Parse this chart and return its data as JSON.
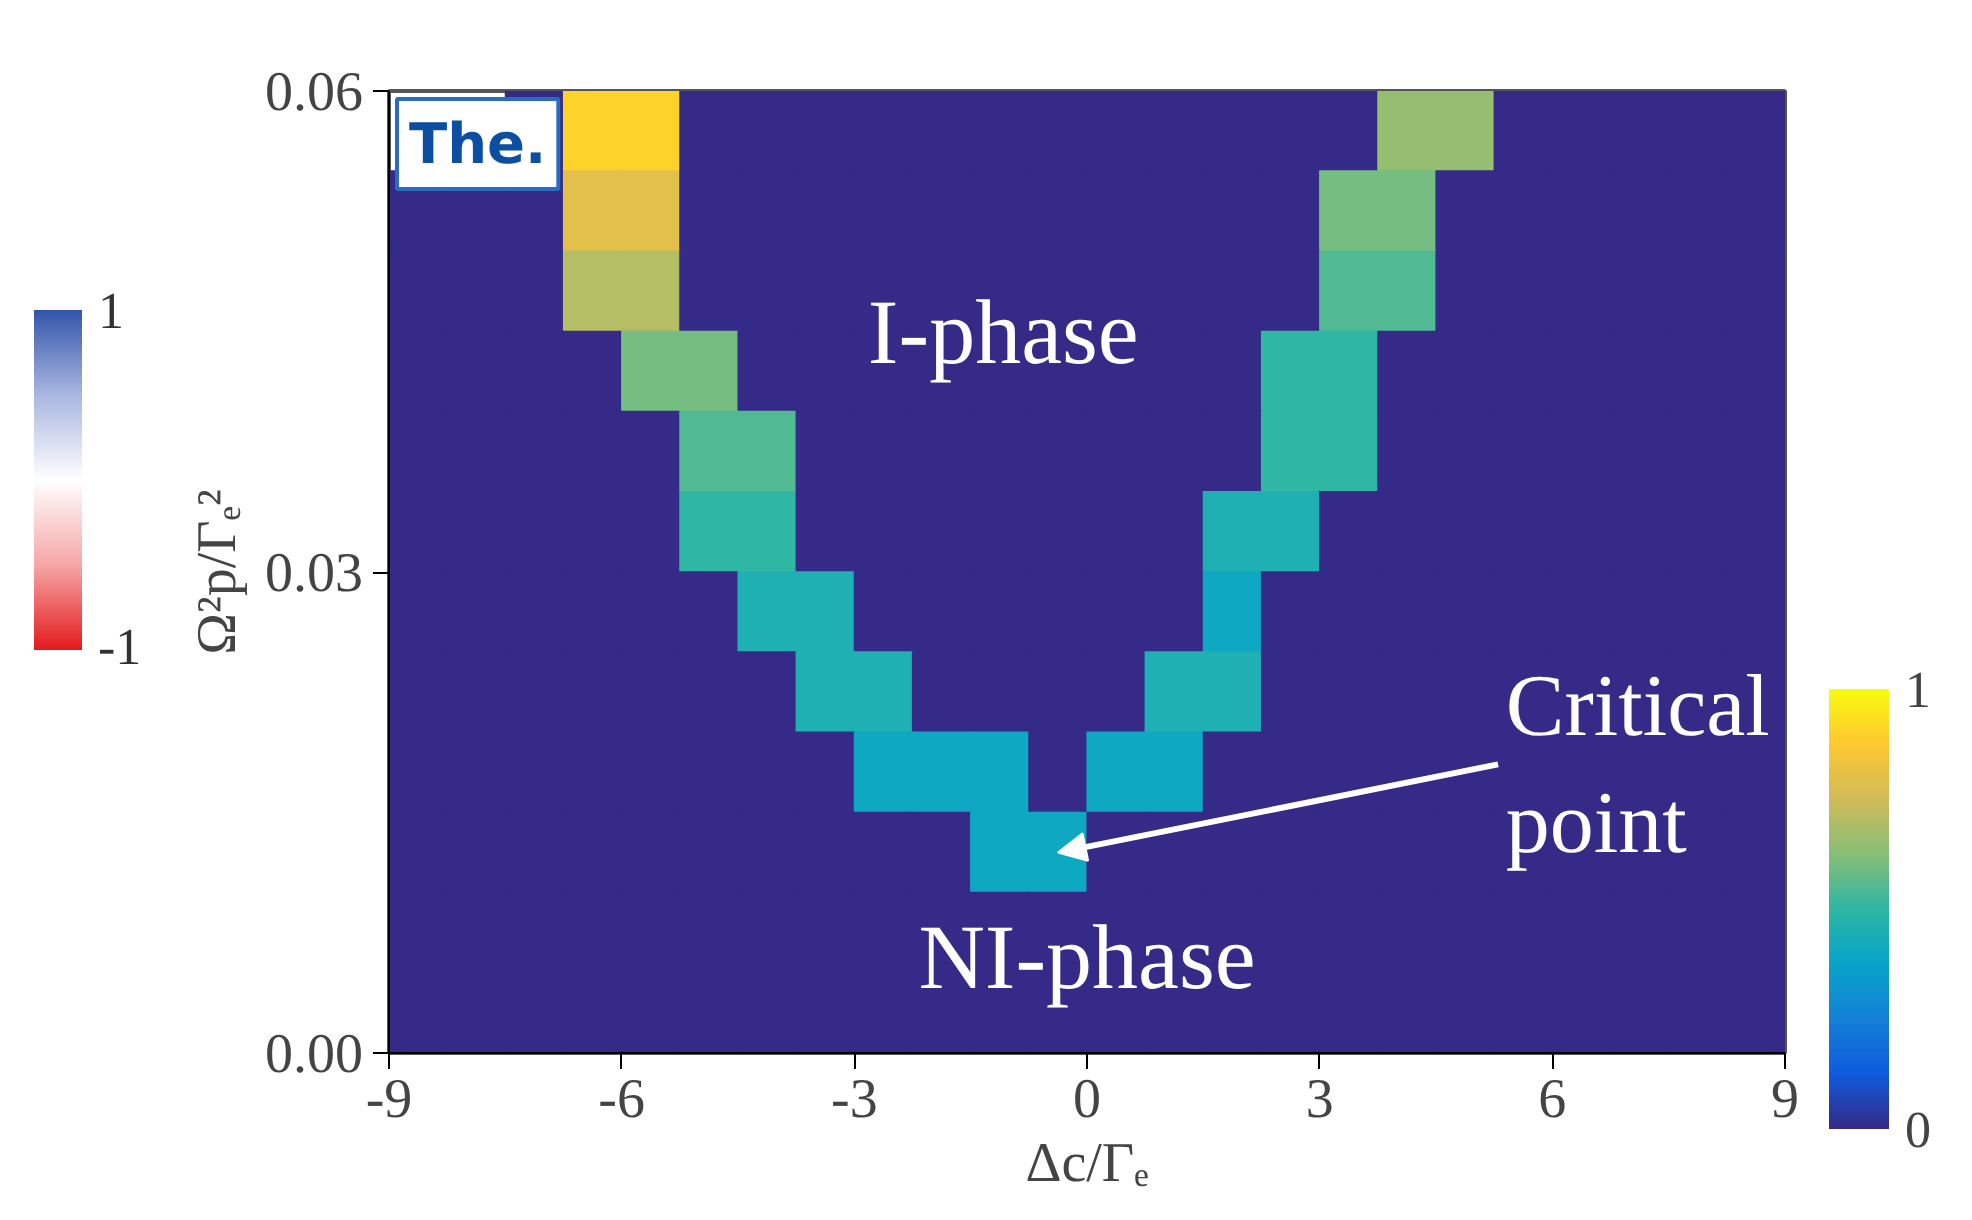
{
  "chart_data": [
    {
      "type": "other",
      "annotations": [
        "1",
        "-1"
      ]
    },
    {
      "type": "scatter",
      "xlabel": "Δc/Γₑ",
      "ylabel": "Ω²p/Γₑ²",
      "marker": "square",
      "xlim": [
        -9,
        9
      ],
      "ylim": [
        0,
        0.06
      ],
      "xticks": [
        {
          "value": -9,
          "label": "-9"
        },
        {
          "value": -6,
          "label": "-6"
        },
        {
          "value": -3,
          "label": "-3"
        },
        0,
        3,
        6,
        9
      ],
      "yticks": [
        {
          "value": 0,
          "label": "0.00"
        },
        {
          "value": 0.03,
          "label": "0.03"
        },
        {
          "value": 0.06,
          "label": "0.06"
        }
      ],
      "clim": [
        0,
        1
      ],
      "cticks": [
        0,
        1
      ],
      "x": [
        -7.125,
        -6.375,
        -5.625,
        -4.875,
        -4.125,
        -3.375,
        -2.625,
        -1.875,
        -1.125,
        -0.375,
        0.375,
        1.125,
        1.875,
        2.625,
        3.375,
        4.125,
        4.875,
        5.625,
        6.375,
        7.125,
        7.875,
        8.625,
        -8.625,
        -7.875,
        -7.125,
        -6.375,
        -5.625,
        -4.875,
        -4.125,
        -3.375,
        -2.625,
        -1.875,
        -1.125,
        -0.375,
        0.375,
        1.125,
        1.875,
        2.625,
        3.375,
        4.125,
        4.875,
        5.625,
        6.375,
        7.125,
        7.875,
        8.625,
        -8.625,
        -7.875,
        -7.125,
        -6.375,
        -5.625,
        -4.875,
        -4.125,
        -3.375,
        -2.625,
        -1.875,
        -1.125,
        -0.375,
        0.375,
        1.125,
        1.875,
        2.625,
        3.375,
        4.125,
        4.875,
        5.625,
        6.375,
        7.125,
        7.875,
        8.625,
        -8.625,
        -7.875,
        -7.125,
        -6.375,
        -5.625,
        -4.875,
        -4.125,
        -3.375,
        -2.625,
        -1.875,
        -1.125,
        -0.375,
        0.375,
        1.125,
        1.875,
        2.625,
        3.375,
        4.125,
        4.875,
        5.625,
        6.375,
        7.125,
        7.875,
        8.625,
        -8.625,
        -7.875,
        -7.125,
        -6.375,
        -5.625,
        -4.875,
        -4.125,
        -3.375,
        -2.625,
        -1.875,
        -1.125,
        -0.375,
        0.375,
        1.125,
        1.875,
        2.625,
        3.375,
        4.125,
        4.875,
        5.625,
        6.375,
        7.125,
        7.875,
        8.625,
        -8.625,
        -7.875,
        -7.125,
        -6.375,
        -5.625,
        -4.875,
        -4.125,
        -3.375,
        -2.625,
        -1.875,
        -1.125,
        -0.375,
        0.375,
        1.125,
        1.875,
        2.625,
        3.375,
        4.125,
        4.875,
        5.625,
        6.375,
        7.125,
        7.875,
        8.625,
        -8.625,
        -7.875,
        -7.125,
        -6.375,
        -5.625,
        -4.875,
        -4.125,
        -3.375,
        -2.625,
        -1.875,
        -1.125,
        -0.375,
        0.375,
        1.125,
        1.875,
        2.625,
        3.375,
        4.125,
        4.875,
        5.625,
        6.375,
        7.125,
        7.875,
        8.625,
        -8.625,
        -7.875,
        -7.125,
        -6.375,
        -5.625,
        -4.875,
        -4.125,
        -3.375,
        -2.625,
        -1.875,
        -1.125,
        -0.375,
        0.375,
        1.125,
        1.875,
        2.625,
        3.375,
        4.125,
        4.875,
        5.625,
        6.375,
        7.125,
        7.875,
        8.625,
        -8.625,
        -7.875,
        -7.125,
        -6.375,
        -5.625,
        -4.875,
        -4.125,
        -3.375,
        -2.625,
        -1.875,
        -1.125,
        -0.375,
        0.375,
        1.125,
        1.875,
        2.625,
        3.375,
        4.125,
        4.875,
        5.625,
        6.375,
        7.125,
        7.875,
        8.625,
        -8.625,
        -7.875,
        -7.125,
        -6.375,
        -5.625,
        -4.875,
        -4.125,
        -3.375,
        -2.625,
        -1.875,
        -1.125,
        -0.375,
        0.375,
        1.125,
        1.875,
        2.625,
        3.375,
        4.125,
        4.875,
        5.625,
        6.375,
        7.125,
        7.875,
        8.625,
        -8.625,
        -7.875,
        -7.125,
        -6.375,
        -5.625,
        -4.875,
        -4.125,
        -3.375,
        -2.625,
        -1.875,
        -1.125,
        -0.375,
        0.375,
        1.125,
        1.875,
        2.625,
        3.375,
        4.125,
        4.875,
        5.625,
        6.375,
        7.125,
        7.875,
        8.625,
        -8.625,
        -7.875,
        -7.125,
        -6.375,
        -5.625,
        -4.875,
        -4.125,
        -3.375,
        -2.625,
        -1.875,
        -1.125,
        -0.375,
        0.375,
        1.125,
        1.875,
        2.625,
        3.375,
        4.125,
        4.875,
        5.625,
        6.375,
        7.125,
        7.875,
        8.625
      ],
      "values": [
        0.0575,
        0.0575,
        0.0575,
        0.0575,
        0.0575,
        0.0575,
        0.0575,
        0.0575,
        0.0575,
        0.0575,
        0.0575,
        0.0575,
        0.0575,
        0.0575,
        0.0575,
        0.0575,
        0.0575,
        0.0575,
        0.0575,
        0.0575,
        0.0575,
        0.0575,
        0.0525,
        0.0525,
        0.0525,
        0.0525,
        0.0525,
        0.0525,
        0.0525,
        0.0525,
        0.0525,
        0.0525,
        0.0525,
        0.0525,
        0.0525,
        0.0525,
        0.0525,
        0.0525,
        0.0525,
        0.0525,
        0.0525,
        0.0525,
        0.0525,
        0.0525,
        0.0525,
        0.0525,
        0.0475,
        0.0475,
        0.0475,
        0.0475,
        0.0475,
        0.0475,
        0.0475,
        0.0475,
        0.0475,
        0.0475,
        0.0475,
        0.0475,
        0.0475,
        0.0475,
        0.0475,
        0.0475,
        0.0475,
        0.0475,
        0.0475,
        0.0475,
        0.0475,
        0.0475,
        0.0475,
        0.0475,
        0.0425,
        0.0425,
        0.0425,
        0.0425,
        0.0425,
        0.0425,
        0.0425,
        0.0425,
        0.0425,
        0.0425,
        0.0425,
        0.0425,
        0.0425,
        0.0425,
        0.0425,
        0.0425,
        0.0425,
        0.0425,
        0.0425,
        0.0425,
        0.0425,
        0.0425,
        0.0425,
        0.0425,
        0.0375,
        0.0375,
        0.0375,
        0.0375,
        0.0375,
        0.0375,
        0.0375,
        0.0375,
        0.0375,
        0.0375,
        0.0375,
        0.0375,
        0.0375,
        0.0375,
        0.0375,
        0.0375,
        0.0375,
        0.0375,
        0.0375,
        0.0375,
        0.0375,
        0.0375,
        0.0375,
        0.0375,
        0.0325,
        0.0325,
        0.0325,
        0.0325,
        0.0325,
        0.0325,
        0.0325,
        0.0325,
        0.0325,
        0.0325,
        0.0325,
        0.0325,
        0.0325,
        0.0325,
        0.0325,
        0.0325,
        0.0325,
        0.0325,
        0.0325,
        0.0325,
        0.0325,
        0.0325,
        0.0325,
        0.0325,
        0.0275,
        0.0275,
        0.0275,
        0.0275,
        0.0275,
        0.0275,
        0.0275,
        0.0275,
        0.0275,
        0.0275,
        0.0275,
        0.0275,
        0.0275,
        0.0275,
        0.0275,
        0.0275,
        0.0275,
        0.0275,
        0.0275,
        0.0275,
        0.0275,
        0.0275,
        0.0275,
        0.0275,
        0.0225,
        0.0225,
        0.0225,
        0.0225,
        0.0225,
        0.0225,
        0.0225,
        0.0225,
        0.0225,
        0.0225,
        0.0225,
        0.0225,
        0.0225,
        0.0225,
        0.0225,
        0.0225,
        0.0225,
        0.0225,
        0.0225,
        0.0225,
        0.0225,
        0.0225,
        0.0225,
        0.0225,
        0.0175,
        0.0175,
        0.0175,
        0.0175,
        0.0175,
        0.0175,
        0.0175,
        0.0175,
        0.0175,
        0.0175,
        0.0175,
        0.0175,
        0.0175,
        0.0175,
        0.0175,
        0.0175,
        0.0175,
        0.0175,
        0.0175,
        0.0175,
        0.0175,
        0.0175,
        0.0175,
        0.0175,
        0.0125,
        0.0125,
        0.0125,
        0.0125,
        0.0125,
        0.0125,
        0.0125,
        0.0125,
        0.0125,
        0.0125,
        0.0125,
        0.0125,
        0.0125,
        0.0125,
        0.0125,
        0.0125,
        0.0125,
        0.0125,
        0.0125,
        0.0125,
        0.0125,
        0.0125,
        0.0125,
        0.0125,
        0.0075,
        0.0075,
        0.0075,
        0.0075,
        0.0075,
        0.0075,
        0.0075,
        0.0075,
        0.0075,
        0.0075,
        0.0075,
        0.0075,
        0.0075,
        0.0075,
        0.0075,
        0.0075,
        0.0075,
        0.0075,
        0.0075,
        0.0075,
        0.0075,
        0.0075,
        0.0075,
        0.0075,
        0.0025,
        0.0025,
        0.0025,
        0.0025,
        0.0025,
        0.0025,
        0.0025,
        0.0025,
        0.0025,
        0.0025,
        0.0025,
        0.0025,
        0.0025,
        0.0025,
        0.0025,
        0.0025,
        0.0025,
        0.0025,
        0.0025,
        0.0025,
        0.0025,
        0.0025,
        0.0025,
        0.0025
      ],
      "cvalues": [
        0,
        0.9,
        0.9,
        0,
        0,
        0,
        0,
        0,
        0,
        0,
        0,
        0,
        0,
        0,
        0,
        0.65,
        0.65,
        0,
        0,
        0,
        0,
        0,
        0,
        0,
        0,
        0.8,
        0.8,
        0,
        0,
        0,
        0,
        0,
        0,
        0,
        0,
        0,
        0,
        0,
        0.6,
        0.6,
        0,
        0,
        0,
        0,
        0,
        0,
        0,
        0,
        0,
        0.7,
        0.7,
        0,
        0,
        0,
        0,
        0,
        0,
        0,
        0,
        0,
        0,
        0,
        0.55,
        0.55,
        0,
        0,
        0,
        0,
        0,
        0,
        0,
        0,
        0,
        0,
        0.6,
        0.6,
        0,
        0,
        0,
        0,
        0,
        0,
        0,
        0,
        0,
        0.5,
        0.5,
        0,
        0,
        0,
        0,
        0,
        0,
        0,
        0,
        0,
        0,
        0,
        0,
        0.55,
        0.55,
        0,
        0,
        0,
        0,
        0,
        0,
        0,
        0,
        0.5,
        0.5,
        0,
        0,
        0,
        0,
        0,
        0,
        0,
        0,
        0,
        0,
        0,
        0,
        0.5,
        0.5,
        0,
        0,
        0,
        0,
        0,
        0,
        0,
        0.45,
        0.45,
        0,
        0,
        0,
        0,
        0,
        0,
        0,
        0,
        0,
        0,
        0,
        0,
        0,
        0,
        0.45,
        0.45,
        0,
        0,
        0,
        0,
        0,
        0,
        0.4,
        0,
        0,
        0,
        0,
        0,
        0,
        0,
        0,
        0,
        0,
        0,
        0,
        0,
        0,
        0,
        0,
        0.45,
        0.45,
        0,
        0,
        0,
        0,
        0.45,
        0.45,
        0,
        0,
        0,
        0,
        0,
        0,
        0,
        0,
        0,
        0,
        0,
        0,
        0,
        0,
        0,
        0,
        0,
        0.4,
        0.4,
        0.4,
        0,
        0.4,
        0.4,
        0,
        0,
        0,
        0,
        0,
        0,
        0,
        0,
        0,
        0,
        0,
        0,
        0,
        0,
        0,
        0,
        0,
        0,
        0,
        0,
        0.4,
        0.4,
        0,
        0,
        0,
        0,
        0,
        0,
        0,
        0,
        0,
        0,
        0,
        0,
        0,
        0,
        0,
        0,
        0,
        0,
        0,
        0,
        0,
        0,
        0,
        0,
        0,
        0,
        0,
        0,
        0,
        0,
        0,
        0,
        0,
        0,
        0,
        0,
        0,
        0,
        0,
        0,
        0,
        0,
        0,
        0,
        0,
        0,
        0,
        0,
        0,
        0,
        0,
        0,
        0,
        0,
        0,
        0,
        0,
        0,
        0,
        0
      ],
      "annotations": [
        "The.",
        "I-phase",
        {
          "text": "Critical\npoint",
          "x": -0.375,
          "y": 0.0125
        },
        "NI-phase"
      ]
    }
  ]
}
